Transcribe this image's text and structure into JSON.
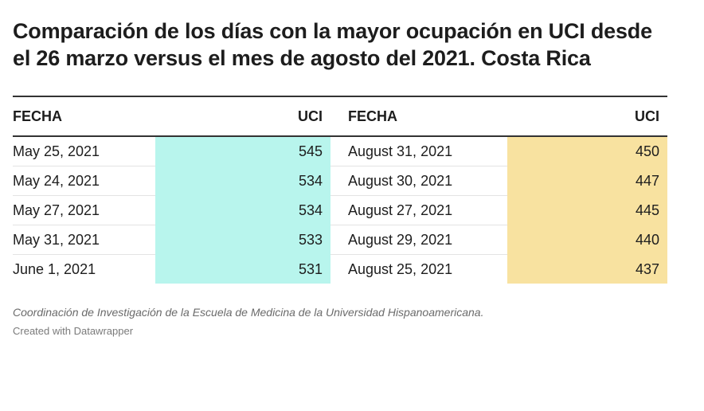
{
  "chart_data": {
    "type": "table",
    "title": "Comparación de los días con la mayor ocupación en UCI desde el 26 marzo versus el mes de agosto del 2021. Costa Rica",
    "columns": [
      "FECHA",
      "UCI",
      "FECHA",
      "UCI"
    ],
    "rows": [
      {
        "fecha1": "May 25, 2021",
        "uci1": 545,
        "fecha2": "August 31, 2021",
        "uci2": 450
      },
      {
        "fecha1": "May 24, 2021",
        "uci1": 534,
        "fecha2": "August 30, 2021",
        "uci2": 447
      },
      {
        "fecha1": "May 27, 2021",
        "uci1": 534,
        "fecha2": "August 27, 2021",
        "uci2": 445
      },
      {
        "fecha1": "May 31, 2021",
        "uci1": 533,
        "fecha2": "August 29, 2021",
        "uci2": 440
      },
      {
        "fecha1": "June 1, 2021",
        "uci1": 531,
        "fecha2": "August 25, 2021",
        "uci2": 437
      }
    ],
    "colors": {
      "uci1_highlight": "#b8f5ed",
      "uci2_highlight": "#f8e2a0"
    }
  },
  "footer": {
    "source": "Coordinación de Investigación de la Escuela de Medicina de la Universidad Hispanoamericana.",
    "credit": "Created with Datawrapper"
  }
}
